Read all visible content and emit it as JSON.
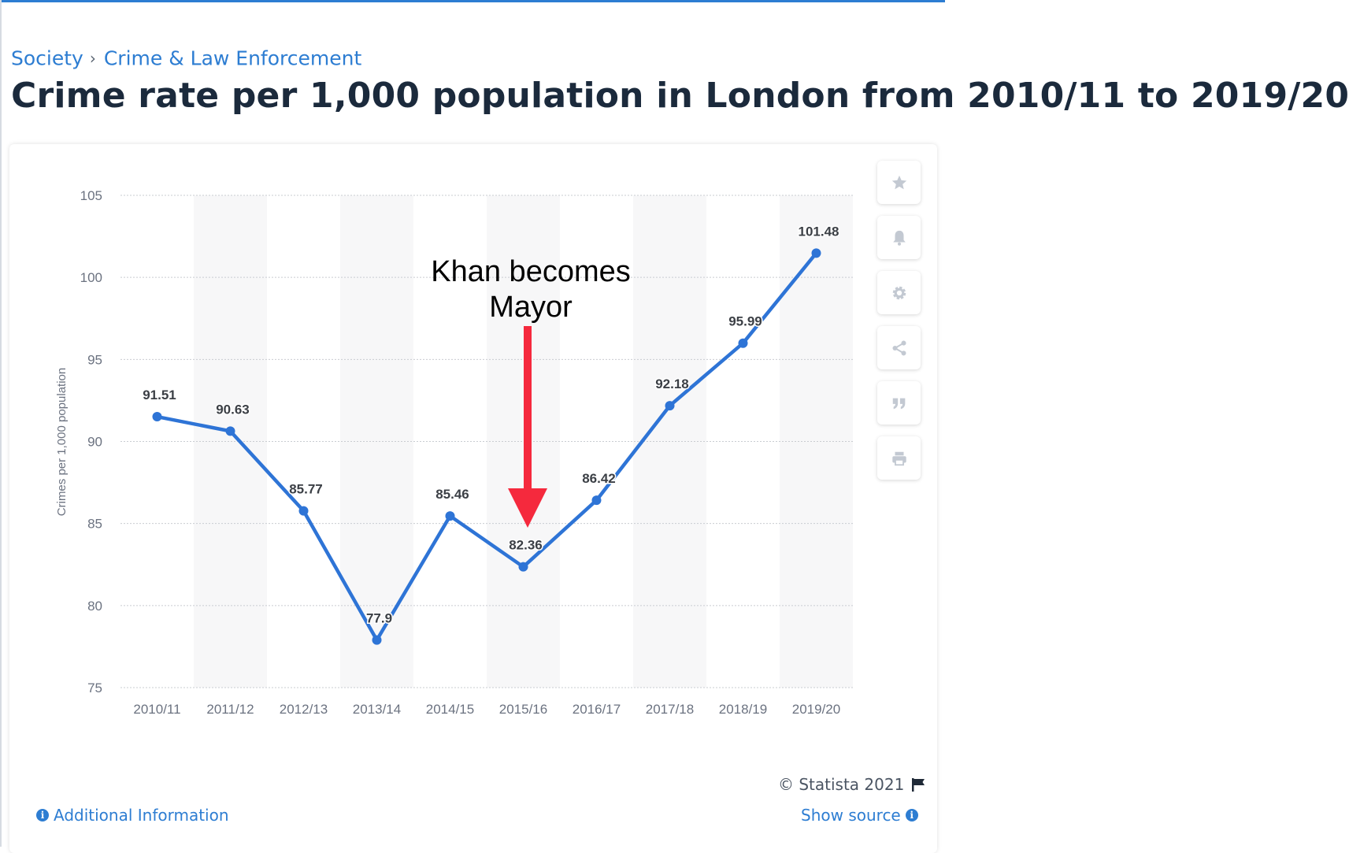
{
  "breadcrumb": {
    "items": [
      "Society",
      "Crime & Law Enforcement"
    ],
    "separator": "›"
  },
  "title": "Crime rate per 1,000 population in London from 2010/11 to 2019/20",
  "annotation": {
    "text_line1": "Khan becomes",
    "text_line2": "Mayor",
    "arrow_color": "#f5293d",
    "points_to": "2015/16"
  },
  "sidebar": {
    "buttons": [
      {
        "icon": "star-icon",
        "label": "Favorite"
      },
      {
        "icon": "bell-icon",
        "label": "Notifications"
      },
      {
        "icon": "gear-icon",
        "label": "Settings"
      },
      {
        "icon": "share-icon",
        "label": "Share"
      },
      {
        "icon": "quote-icon",
        "label": "Cite"
      },
      {
        "icon": "print-icon",
        "label": "Print"
      }
    ]
  },
  "footer": {
    "copyright": "© Statista 2021",
    "additional_info": "Additional Information",
    "show_source": "Show source"
  },
  "colors": {
    "accent": "#2d7dd2",
    "line": "#2e74d6",
    "title": "#1b2a3c",
    "arrow": "#f5293d"
  },
  "chart_data": {
    "type": "line",
    "categories": [
      "2010/11",
      "2011/12",
      "2012/13",
      "2013/14",
      "2014/15",
      "2015/16",
      "2016/17",
      "2017/18",
      "2018/19",
      "2019/20"
    ],
    "series": [
      {
        "values": [
          91.51,
          90.63,
          85.77,
          77.9,
          85.46,
          82.36,
          86.42,
          92.18,
          95.99,
          101.48
        ]
      }
    ],
    "data_labels": [
      "91.51",
      "90.63",
      "85.77",
      "77.9",
      "85.46",
      "82.36",
      "86.42",
      "92.18",
      "95.99",
      "101.48"
    ],
    "ylabel": "Crimes per 1,000 population",
    "xlabel": "",
    "ylim": [
      75,
      105
    ],
    "yticks": [
      75,
      80,
      85,
      90,
      95,
      100,
      105
    ],
    "grid": true,
    "alternating_column_bands": true
  }
}
